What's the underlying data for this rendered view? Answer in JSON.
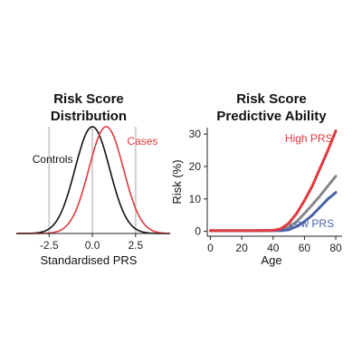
{
  "chart_data": [
    {
      "type": "line",
      "chart": "density",
      "title_lines": [
        "Risk Score",
        "Distribution"
      ],
      "xlabel": "Standardised PRS",
      "ylabel": "",
      "xlim": [
        -4.4,
        4.5
      ],
      "ylim": [
        0,
        1
      ],
      "x_ticks": [
        -2.5,
        0.0,
        2.5
      ],
      "x_tick_labels": [
        "-2.5",
        "0.0",
        "2.5"
      ],
      "y_axis_shown": false,
      "vlines": [
        -2.5,
        0.0,
        2.5
      ],
      "vline_color": "#d0d0d0",
      "series": [
        {
          "name": "Controls",
          "mean": 0.0,
          "sd": 1.0,
          "color": "#111111",
          "label_pos": [
            -2.3,
            0.66
          ]
        },
        {
          "name": "Cases",
          "mean": 0.8,
          "sd": 1.0,
          "color": "#e0393e",
          "label_pos": [
            2.9,
            0.83
          ]
        }
      ]
    },
    {
      "type": "line",
      "title_lines": [
        "Risk Score",
        "Predictive Ability"
      ],
      "xlabel": "Age",
      "ylabel": "Risk (%)",
      "xlim": [
        -2,
        84
      ],
      "ylim": [
        -1.5,
        32
      ],
      "x_ticks": [
        0,
        20,
        40,
        60,
        80
      ],
      "y_ticks": [
        0,
        10,
        20,
        30
      ],
      "x": [
        0,
        10,
        20,
        30,
        40,
        45,
        50,
        55,
        60,
        65,
        70,
        75,
        80
      ],
      "series": [
        {
          "name": "High PRS",
          "color": "#e0393e",
          "values": [
            0.2,
            0.2,
            0.2,
            0.2,
            0.3,
            0.8,
            2.5,
            5.5,
            9.5,
            14.0,
            19.5,
            25.0,
            31.0
          ],
          "label_pos": [
            78,
            27.5
          ],
          "label_anchor": "end"
        },
        {
          "name": "",
          "color": "#888888",
          "values": [
            0.2,
            0.2,
            0.2,
            0.2,
            0.2,
            0.4,
            1.3,
            3.0,
            5.5,
            8.2,
            11.0,
            14.0,
            17.0
          ]
        },
        {
          "name": "Low PRS",
          "color": "#4a62a8",
          "values": [
            0.2,
            0.2,
            0.2,
            0.2,
            0.2,
            0.2,
            0.5,
            1.5,
            3.0,
            5.0,
            7.5,
            10.0,
            12.0
          ],
          "label_pos": [
            50,
            1.3
          ],
          "label_anchor": "start"
        }
      ]
    }
  ]
}
